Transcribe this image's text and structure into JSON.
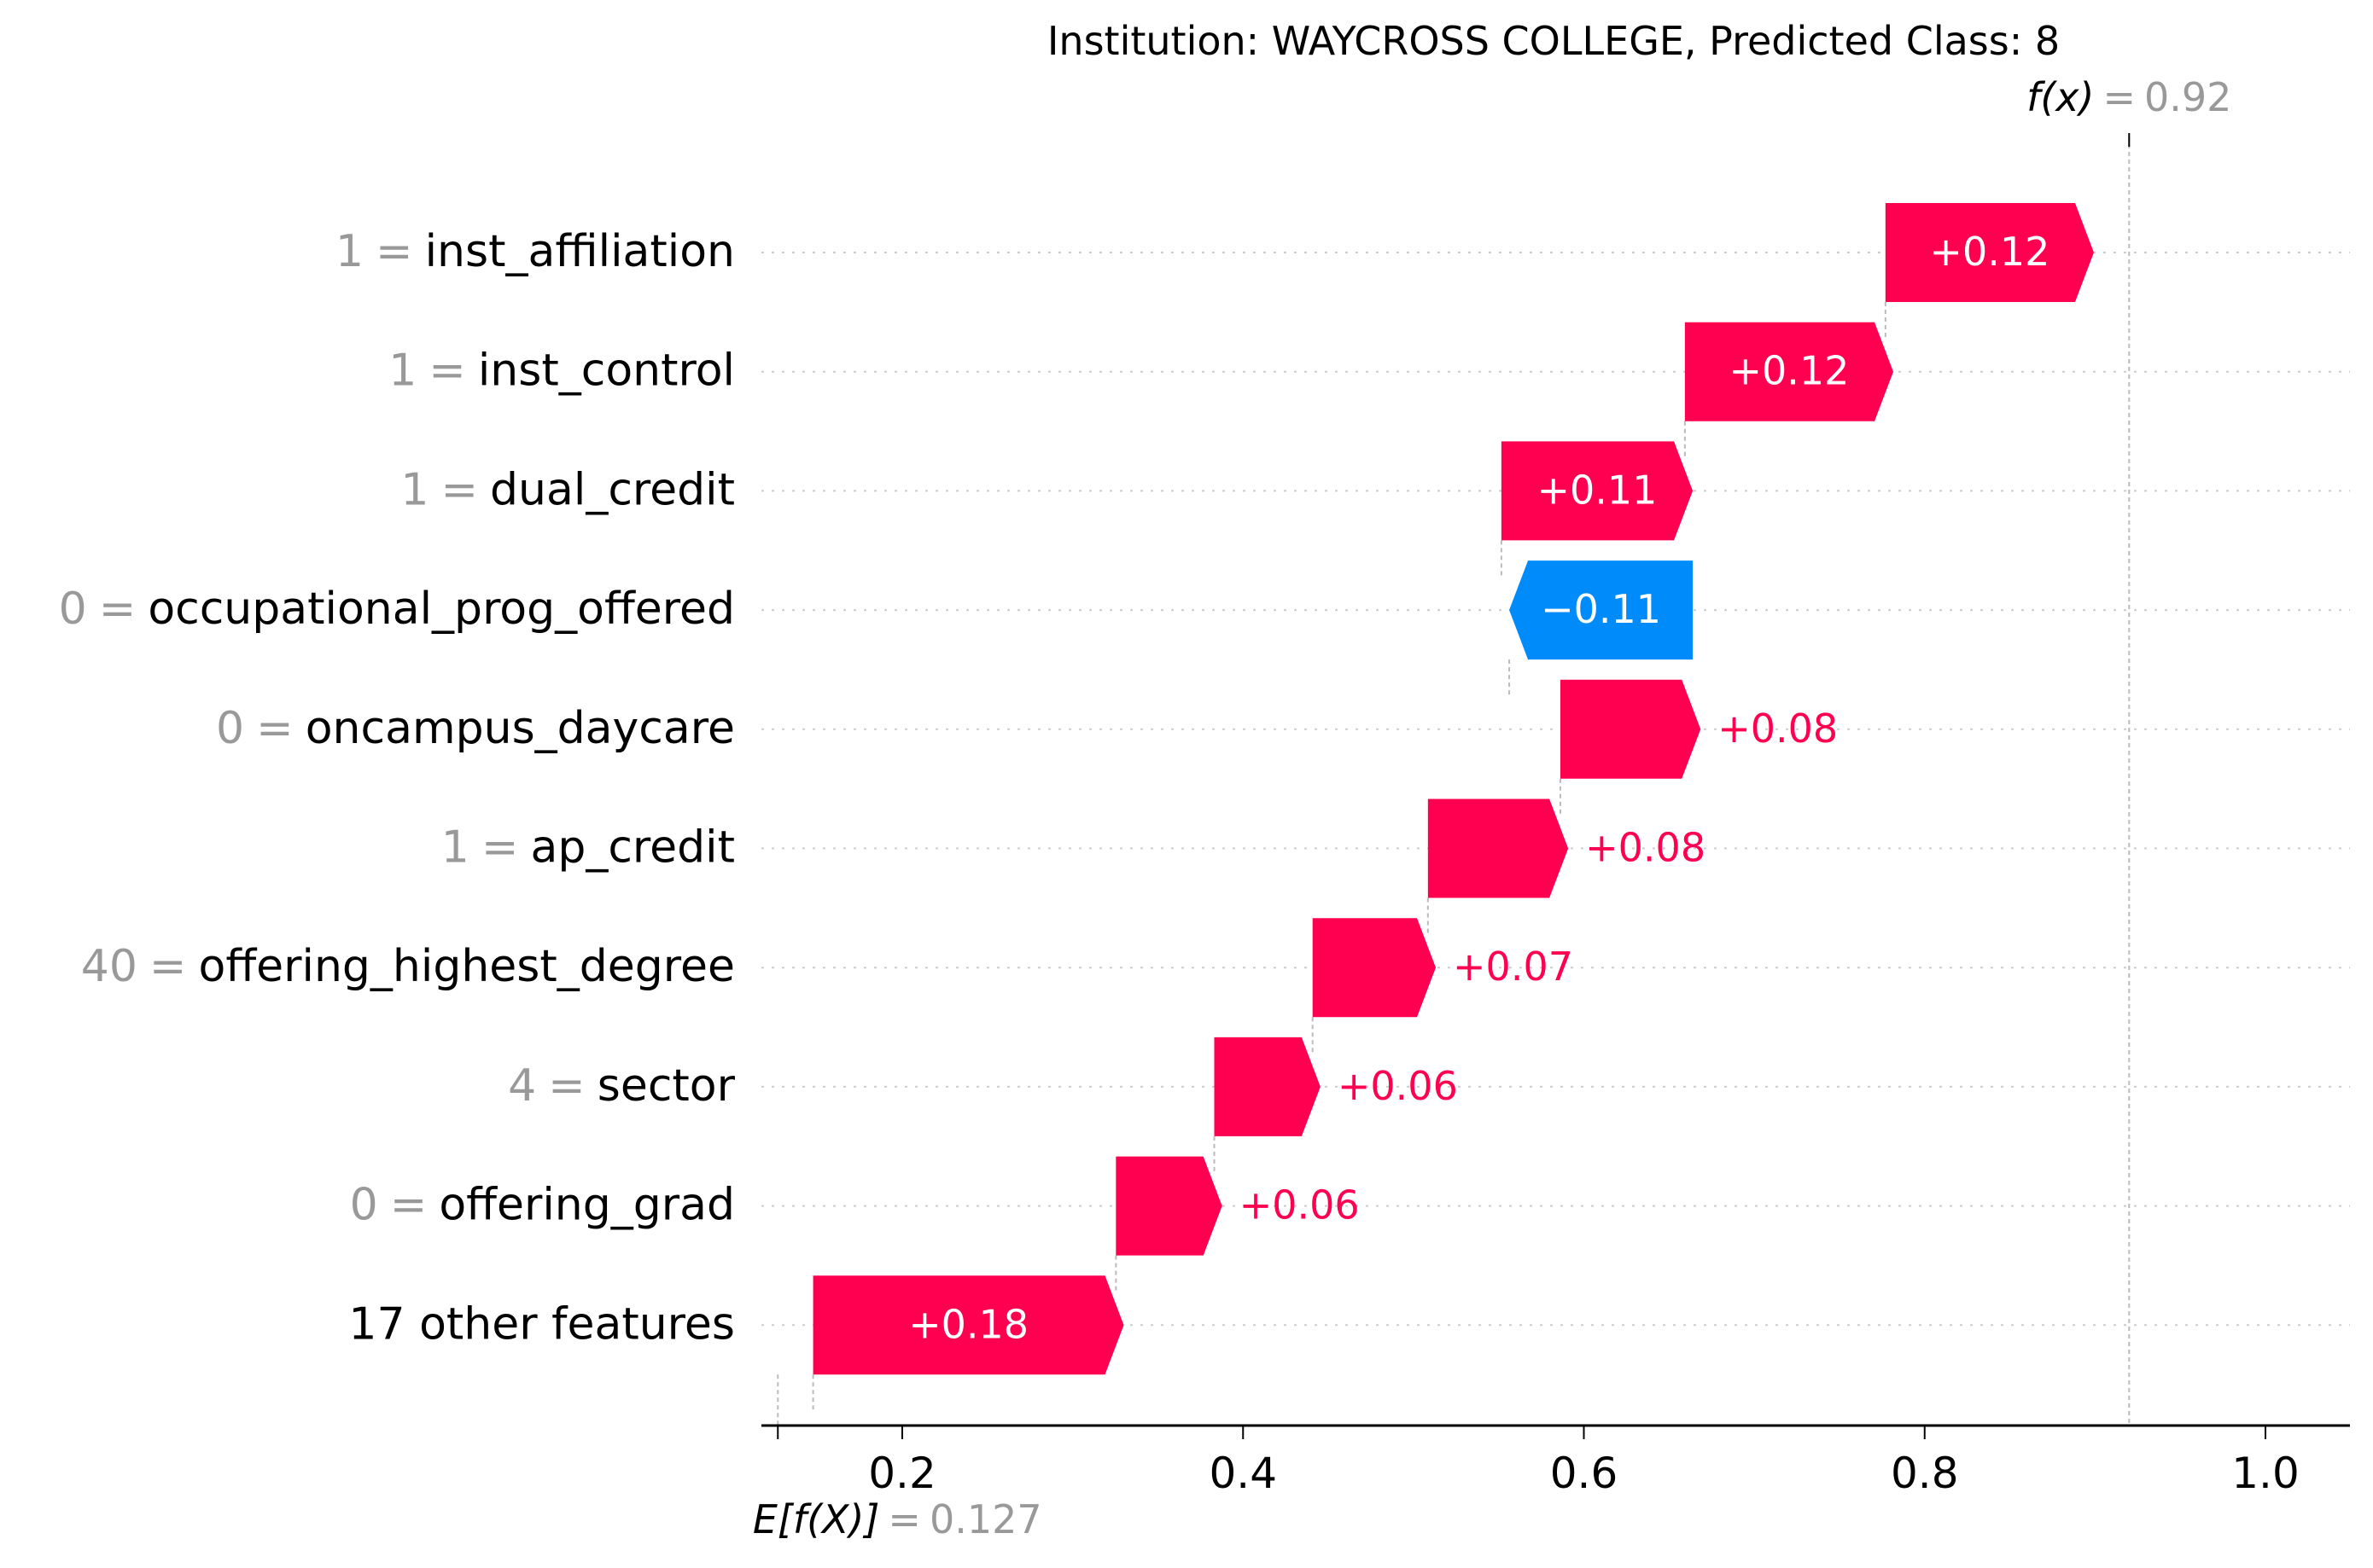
{
  "chart_data": {
    "type": "waterfall",
    "title": "Institution: WAYCROSS COLLEGE, Predicted Class: 8",
    "base_value": 0.127,
    "base_value_label": "0.127",
    "base_label": "E[f(X)]",
    "output_value": 0.92,
    "output_value_label": "0.92",
    "output_label": "f(x)",
    "xlim": [
      0.11,
      1.05
    ],
    "xticks": [
      0.2,
      0.4,
      0.6,
      0.8,
      1.0
    ],
    "xtick_labels": [
      "0.2",
      "0.4",
      "0.6",
      "0.8",
      "1.0"
    ],
    "features": [
      {
        "value": "1",
        "name": "inst_affiliation",
        "shap": 0.12,
        "label": "+0.12"
      },
      {
        "value": "1",
        "name": "inst_control",
        "shap": 0.12,
        "label": "+0.12"
      },
      {
        "value": "1",
        "name": "dual_credit",
        "shap": 0.11,
        "label": "+0.11"
      },
      {
        "value": "0",
        "name": "occupational_prog_offered",
        "shap": -0.11,
        "label": "−0.11"
      },
      {
        "value": "0",
        "name": "oncampus_daycare",
        "shap": 0.08,
        "label": "+0.08"
      },
      {
        "value": "1",
        "name": "ap_credit",
        "shap": 0.08,
        "label": "+0.08"
      },
      {
        "value": "40",
        "name": "offering_highest_degree",
        "shap": 0.07,
        "label": "+0.07"
      },
      {
        "value": "4",
        "name": "sector",
        "shap": 0.06,
        "label": "+0.06"
      },
      {
        "value": "0",
        "name": "offering_grad",
        "shap": 0.06,
        "label": "+0.06"
      },
      {
        "value": "",
        "name": "17 other features",
        "shap": 0.18,
        "label": "+0.18"
      }
    ],
    "grid": true,
    "colors": {
      "positive": "#ff0051",
      "negative": "#008bfb",
      "muted": "#999999",
      "text": "#000000"
    }
  }
}
